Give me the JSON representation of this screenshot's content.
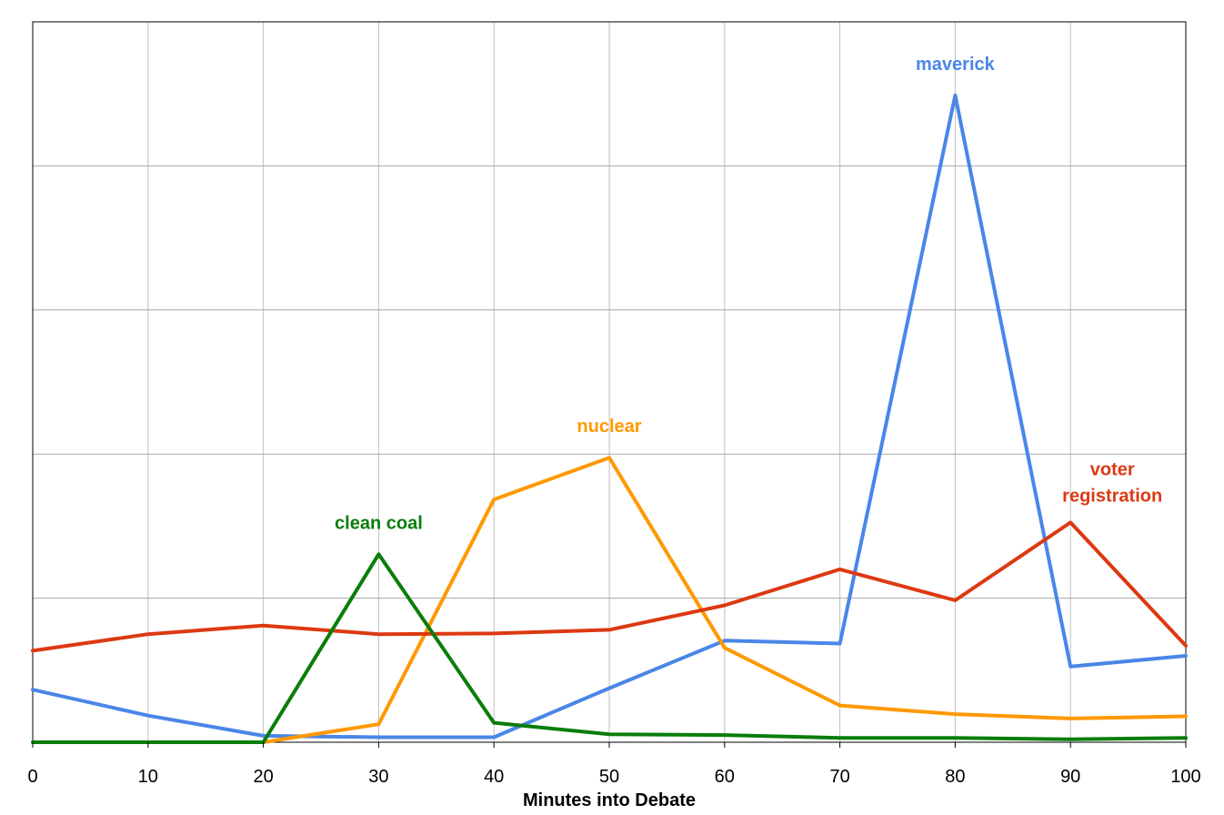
{
  "chart_data": {
    "type": "line",
    "title": "",
    "xlabel": "Minutes into Debate",
    "ylabel": "",
    "x": [
      0,
      10,
      20,
      30,
      40,
      50,
      60,
      70,
      80,
      90,
      100
    ],
    "xlim": [
      0,
      100
    ],
    "ylim": [
      0,
      100
    ],
    "grid": true,
    "legend": "none (series labeled inline)",
    "series": [
      {
        "name": "maverick",
        "color": "#4a86e8",
        "values": [
          7.3,
          3.7,
          0.9,
          0.7,
          0.7,
          7.5,
          14.1,
          13.7,
          89.8,
          10.5,
          12.0
        ]
      },
      {
        "name": "nuclear",
        "color": "#ff9900",
        "values": [
          null,
          null,
          0.0,
          2.5,
          33.7,
          39.5,
          13.1,
          5.1,
          3.9,
          3.3,
          3.6
        ]
      },
      {
        "name": "voter registration",
        "label_lines": [
          "voter",
          "registration"
        ],
        "color": "#dc3912",
        "values": [
          12.7,
          15.0,
          16.2,
          15.0,
          15.1,
          15.6,
          19.0,
          24.0,
          19.7,
          30.5,
          13.4
        ]
      },
      {
        "name": "clean coal",
        "color": "#0a7d0a",
        "values": [
          0.0,
          0.0,
          0.0,
          26.1,
          2.7,
          1.1,
          1.0,
          0.6,
          0.6,
          0.4,
          0.6
        ]
      }
    ]
  }
}
